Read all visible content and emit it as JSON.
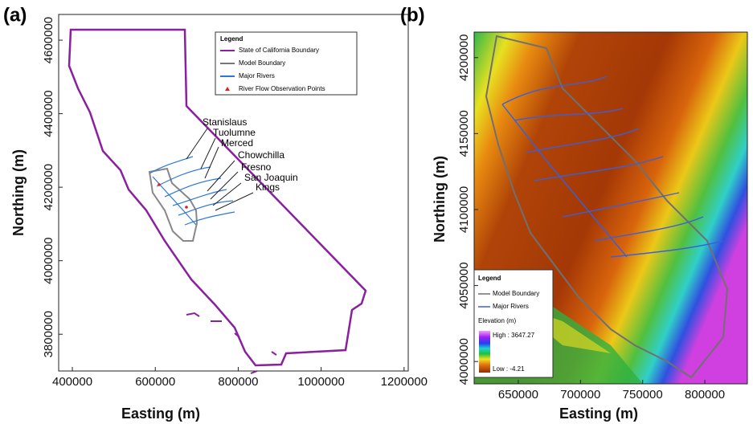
{
  "panels": [
    {
      "label": "(a)",
      "x_label": "Easting (m)",
      "y_label": "Northing (m)",
      "xlim": [
        367000,
        1210000
      ],
      "ylim": [
        3700000,
        4670000
      ],
      "xticks": [
        400000,
        600000,
        800000,
        1000000,
        1200000
      ],
      "yticks": [
        3800000,
        4000000,
        4200000,
        4400000,
        4600000
      ],
      "legend": {
        "title": "Legend",
        "items": [
          "State of California Boundary",
          "Model Boundary",
          "Major Rivers",
          "River Flow Observation Points"
        ]
      },
      "annotations": [
        "Stanislaus",
        "Tuolumne",
        "Merced",
        "Chowchilla",
        "Fresno",
        "San Joaquin",
        "Kings"
      ]
    },
    {
      "label": "(b)",
      "x_label": "Easting (m)",
      "y_label": "Northing (m)",
      "xlim": [
        614500,
        834200
      ],
      "ylim": [
        3985300,
        4228400
      ],
      "xticks": [
        650000,
        700000,
        750000,
        800000
      ],
      "yticks": [
        4000000,
        4050000,
        4100000,
        4150000,
        4200000
      ],
      "legend": {
        "title": "Legend",
        "items": [
          "Model Boundary",
          "Major Rivers"
        ],
        "elevation_title": "Elevation (m)",
        "high": "High : 3647.27",
        "low": "Low : -4.21"
      }
    }
  ]
}
